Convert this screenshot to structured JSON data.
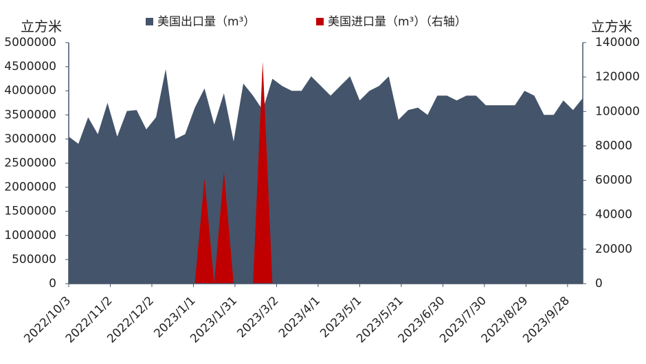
{
  "chart_data": {
    "type": "area",
    "y_label": "立方米",
    "y2_label": "立方米",
    "x": [
      "2022/10/3",
      "2022/10/10",
      "2022/10/17",
      "2022/10/24",
      "2022/10/31",
      "2022/11/7",
      "2022/11/14",
      "2022/11/21",
      "2022/11/28",
      "2022/12/5",
      "2022/12/12",
      "2022/12/19",
      "2022/12/26",
      "2023/1/2",
      "2023/1/9",
      "2023/1/16",
      "2023/1/23",
      "2023/1/30",
      "2023/2/6",
      "2023/2/13",
      "2023/2/20",
      "2023/2/27",
      "2023/3/6",
      "2023/3/13",
      "2023/3/20",
      "2023/3/27",
      "2023/4/3",
      "2023/4/10",
      "2023/4/17",
      "2023/4/24",
      "2023/5/1",
      "2023/5/8",
      "2023/5/15",
      "2023/5/22",
      "2023/5/29",
      "2023/6/5",
      "2023/6/12",
      "2023/6/19",
      "2023/6/26",
      "2023/7/3",
      "2023/7/10",
      "2023/7/17",
      "2023/7/24",
      "2023/7/31",
      "2023/8/7",
      "2023/8/14",
      "2023/8/21",
      "2023/8/28",
      "2023/9/4",
      "2023/9/11",
      "2023/9/18",
      "2023/9/25",
      "2023/10/2",
      "2023/10/9"
    ],
    "xlim": [
      "2022/10/3",
      "2023/10/9"
    ],
    "xticks": [
      "2022/10/3",
      "2022/11/2",
      "2022/12/2",
      "2023/1/1",
      "2023/1/31",
      "2023/3/2",
      "2023/4/1",
      "2023/5/1",
      "2023/5/31",
      "2023/6/30",
      "2023/7/30",
      "2023/8/29",
      "2023/9/28"
    ],
    "series": [
      {
        "name": "美国出口量（m³）",
        "color": "#44546a",
        "values": [
          3050000,
          2900000,
          3450000,
          3100000,
          3750000,
          3050000,
          3580000,
          3600000,
          3200000,
          3450000,
          4450000,
          3000000,
          3100000,
          3650000,
          4050000,
          3300000,
          3950000,
          2950000,
          4150000,
          3900000,
          3600000,
          4250000,
          4100000,
          4000000,
          4000000,
          4300000,
          4100000,
          3900000,
          4100000,
          4300000,
          3800000,
          4000000,
          4100000,
          4300000,
          3400000,
          3600000,
          3650000,
          3500000,
          3900000,
          3900000,
          3800000,
          3900000,
          3900000,
          3700000,
          3700000,
          3700000,
          3700000,
          4000000,
          3900000,
          3500000,
          3500000,
          3800000,
          3600000,
          3850000
        ]
      },
      {
        "name": "美国进口量（m³）（右轴）",
        "color": "#c00000",
        "axis": "y2",
        "values": [
          0,
          0,
          0,
          0,
          0,
          0,
          0,
          0,
          0,
          0,
          0,
          0,
          0,
          0,
          61000,
          0,
          65000,
          0,
          0,
          0,
          129000,
          0,
          0,
          0,
          0,
          0,
          0,
          0,
          0,
          0,
          0,
          0,
          0,
          0,
          0,
          0,
          0,
          0,
          0,
          0,
          0,
          0,
          0,
          0,
          0,
          0,
          0,
          0,
          0,
          0,
          0,
          0,
          0,
          0
        ]
      }
    ],
    "ylim": [
      0,
      5000000
    ],
    "yticks": [
      0,
      500000,
      1000000,
      1500000,
      2000000,
      2500000,
      3000000,
      3500000,
      4000000,
      4500000,
      5000000
    ],
    "y2lim": [
      0,
      140000
    ],
    "y2ticks": [
      0,
      20000,
      40000,
      60000,
      80000,
      100000,
      120000,
      140000
    ],
    "legend": "top"
  }
}
